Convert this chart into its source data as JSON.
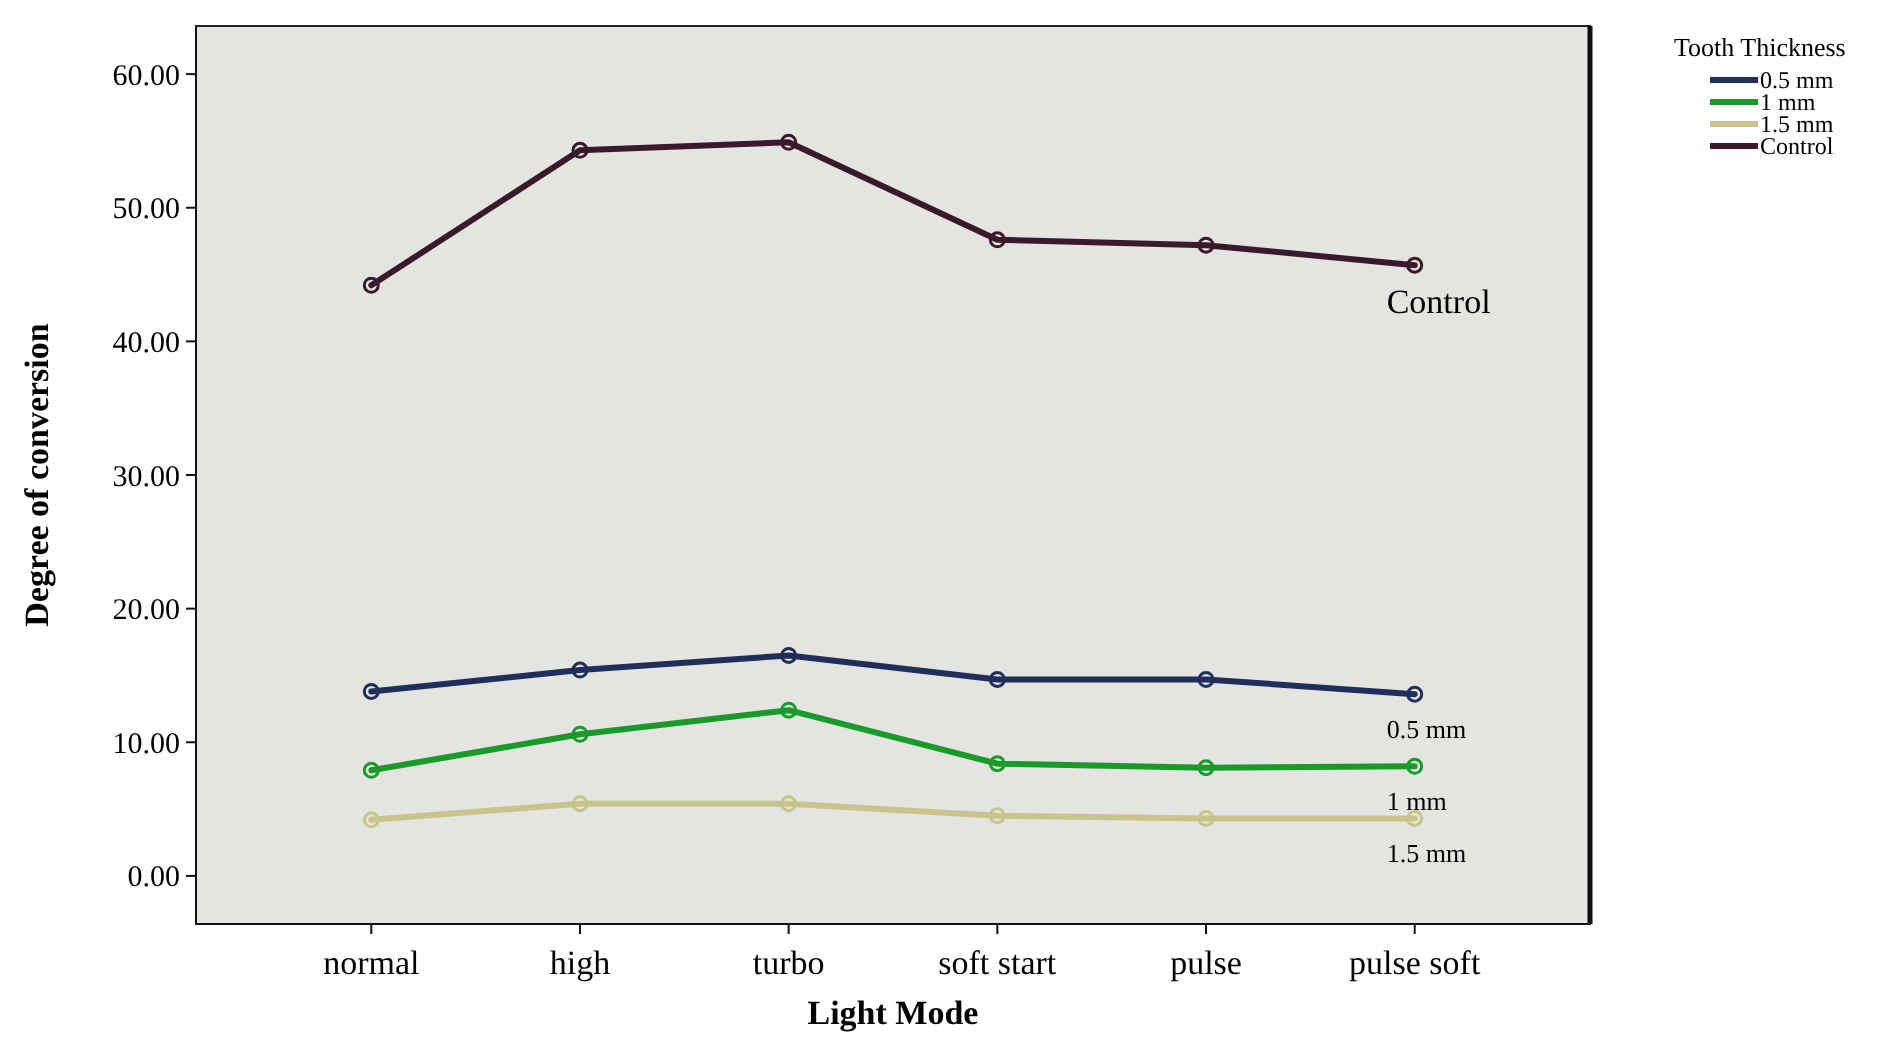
{
  "chart_data": {
    "type": "line",
    "xlabel": "Light Mode",
    "ylabel": "Degree of conversion",
    "legend_title": "Tooth Thickness",
    "legend": "top right",
    "marker": "circle",
    "line_style": "solid",
    "grid": false,
    "categories": [
      "normal",
      "high",
      "turbo",
      "soft start",
      "pulse",
      "pulse soft"
    ],
    "ylim": [
      -3.6,
      63.6
    ],
    "yticks": [
      {
        "value": 0,
        "label": "0.00"
      },
      {
        "value": 10,
        "label": "10.00"
      },
      {
        "value": 20,
        "label": "20.00"
      },
      {
        "value": 30,
        "label": "30.00"
      },
      {
        "value": 40,
        "label": "40.00"
      },
      {
        "value": 50,
        "label": "50.00"
      },
      {
        "value": 60,
        "label": "60.00"
      }
    ],
    "series": [
      {
        "name": "0.5 mm",
        "color": "#1f2f5a",
        "values": [
          13.8,
          15.4,
          16.5,
          14.7,
          14.7,
          13.6
        ]
      },
      {
        "name": "1 mm",
        "color": "#1a9a2a",
        "values": [
          7.9,
          10.6,
          12.4,
          8.4,
          8.1,
          8.2
        ]
      },
      {
        "name": "1.5 mm",
        "color": "#c8c48c",
        "values": [
          4.2,
          5.4,
          5.4,
          4.5,
          4.3,
          4.3
        ]
      },
      {
        "name": "Control",
        "color": "#3a1a2a",
        "values": [
          44.2,
          54.3,
          54.9,
          47.6,
          47.2,
          45.7
        ]
      }
    ]
  }
}
